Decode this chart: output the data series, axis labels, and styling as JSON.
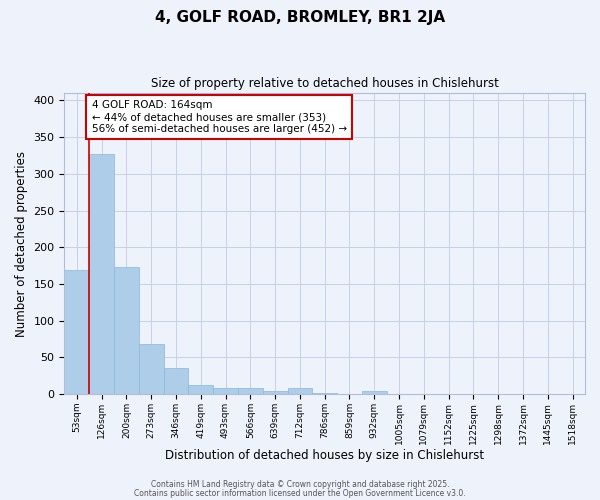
{
  "title1": "4, GOLF ROAD, BROMLEY, BR1 2JA",
  "title2": "Size of property relative to detached houses in Chislehurst",
  "xlabel": "Distribution of detached houses by size in Chislehurst",
  "ylabel": "Number of detached properties",
  "categories": [
    "53sqm",
    "126sqm",
    "200sqm",
    "273sqm",
    "346sqm",
    "419sqm",
    "493sqm",
    "566sqm",
    "639sqm",
    "712sqm",
    "786sqm",
    "859sqm",
    "932sqm",
    "1005sqm",
    "1079sqm",
    "1152sqm",
    "1225sqm",
    "1298sqm",
    "1372sqm",
    "1445sqm",
    "1518sqm"
  ],
  "values": [
    169,
    327,
    173,
    69,
    35,
    12,
    9,
    9,
    4,
    9,
    2,
    0,
    4,
    0,
    0,
    0,
    0,
    0,
    0,
    0,
    0
  ],
  "bar_color": "#aecde8",
  "bar_edge_color": "#88b8de",
  "vline_color": "#cc0000",
  "annotation_text": "4 GOLF ROAD: 164sqm\n← 44% of detached houses are smaller (353)\n56% of semi-detached houses are larger (452) →",
  "annotation_box_color": "white",
  "annotation_box_edge": "#cc0000",
  "ylim": [
    0,
    410
  ],
  "yticks": [
    0,
    50,
    100,
    150,
    200,
    250,
    300,
    350,
    400
  ],
  "background_color": "#eef2fb",
  "grid_color": "#c8d0e8",
  "footer1": "Contains HM Land Registry data © Crown copyright and database right 2025.",
  "footer2": "Contains public sector information licensed under the Open Government Licence v3.0."
}
